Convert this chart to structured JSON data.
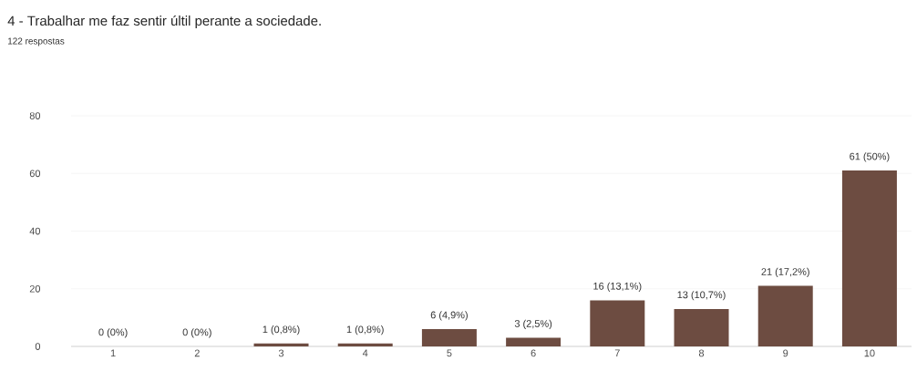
{
  "chart_data": {
    "type": "bar",
    "title": "4 - Trabalhar me faz sentir últil perante a sociedade.",
    "subtitle": "122 respostas",
    "categories": [
      "1",
      "2",
      "3",
      "4",
      "5",
      "6",
      "7",
      "8",
      "9",
      "10"
    ],
    "values": [
      0,
      0,
      1,
      1,
      6,
      3,
      16,
      13,
      21,
      61
    ],
    "value_labels": [
      "0 (0%)",
      "0 (0%)",
      "1 (0,8%)",
      "1 (0,8%)",
      "6 (4,9%)",
      "3 (2,5%)",
      "16 (13,1%)",
      "13 (10,7%)",
      "21 (17,2%)",
      "61 (50%)"
    ],
    "color": "#6d4c41",
    "ylim": [
      0,
      80
    ],
    "yticks": [
      0,
      20,
      40,
      60,
      80
    ],
    "grid": "y"
  }
}
